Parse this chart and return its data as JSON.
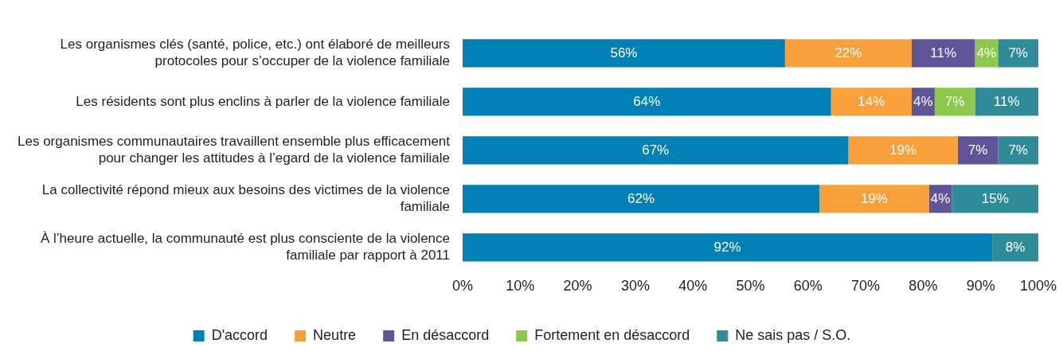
{
  "chart_data": {
    "type": "bar",
    "orientation": "horizontal",
    "stacked": true,
    "grid": false,
    "legend": "bottom",
    "categories": [
      "Les organismes clés (santé, police, etc.) ont élaboré de meilleurs protocoles pour s’occuper de la violence familiale",
      "Les résidents sont plus enclins à parler de la violence familiale",
      "Les organismes communautaires travaillent ensemble plus efficacement pour changer les attitudes à l’egard de la violence familiale",
      "La collectivité répond mieux aux besoins des victimes de la violence familiale",
      "À l’heure actuelle, la communauté est plus consciente de la violence familiale par rapport à 2011"
    ],
    "series": [
      {
        "name": "D'accord",
        "color": "#0080b4",
        "values": [
          56,
          64,
          67,
          62,
          92
        ],
        "value_labels": [
          "56%",
          "64%",
          "67%",
          "62%",
          "92%"
        ]
      },
      {
        "name": "Neutre",
        "color": "#f7a03c",
        "values": [
          22,
          14,
          19,
          19,
          null
        ],
        "value_labels": [
          "22%",
          "14%",
          "19%",
          "19%",
          null
        ]
      },
      {
        "name": "En désaccord",
        "color": "#5f5497",
        "values": [
          11,
          4,
          7,
          4,
          null
        ],
        "value_labels": [
          "11%",
          "4%",
          "7%",
          "4%",
          null
        ]
      },
      {
        "name": "Fortement en désaccord",
        "color": "#8cc84b",
        "values": [
          4,
          7,
          null,
          null,
          null
        ],
        "value_labels": [
          "4%",
          "7%",
          null,
          null,
          null
        ]
      },
      {
        "name": "Ne sais pas / S.O.",
        "color": "#2e8b97",
        "values": [
          7,
          11,
          7,
          15,
          8
        ],
        "value_labels": [
          "7%",
          "11%",
          "7%",
          "15%",
          "8%"
        ]
      }
    ],
    "xlim": [
      0,
      100
    ],
    "xticks": [
      {
        "value": 0,
        "label": "0%"
      },
      {
        "value": 10,
        "label": "10%"
      },
      {
        "value": 20,
        "label": "20%"
      },
      {
        "value": 30,
        "label": "30%"
      },
      {
        "value": 40,
        "label": "40%"
      },
      {
        "value": 50,
        "label": "50%"
      },
      {
        "value": 60,
        "label": "60%"
      },
      {
        "value": 70,
        "label": "70%"
      },
      {
        "value": 80,
        "label": "80%"
      },
      {
        "value": 90,
        "label": "90%"
      },
      {
        "value": 100,
        "label": "100%"
      }
    ]
  }
}
